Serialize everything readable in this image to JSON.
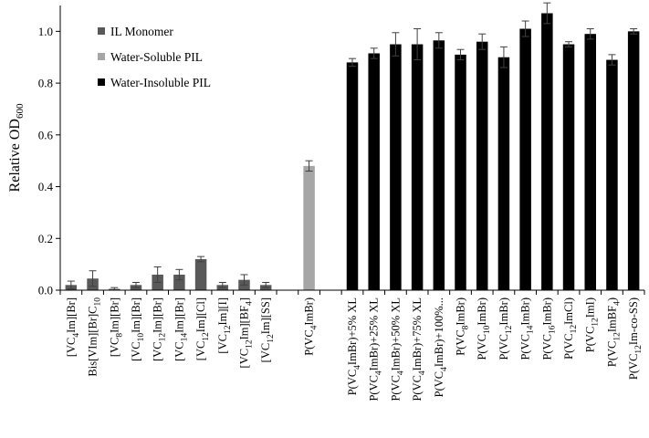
{
  "chart_data": {
    "type": "bar",
    "title": "",
    "xlabel": "",
    "ylabel": "Relative OD600",
    "ylabel_parts": [
      {
        "t": "Relative OD",
        "sub": false
      },
      {
        "t": "600",
        "sub": true
      }
    ],
    "ylim": [
      0,
      1.1
    ],
    "yticks": [
      0.0,
      0.2,
      0.4,
      0.6,
      0.8,
      1.0
    ],
    "ytick_labels": [
      "0.0",
      "0.2",
      "0.4",
      "0.6",
      "0.8",
      "1.0"
    ],
    "grid": false,
    "legend_position": "top-left",
    "series": [
      {
        "name": "IL Monomer",
        "color": "#595959"
      },
      {
        "name": "Water-Soluble PIL",
        "color": "#a6a6a6"
      },
      {
        "name": "Water-Insoluble PIL",
        "color": "#000000"
      }
    ],
    "points": [
      {
        "category": "[VC4Im][Br]",
        "label": [
          {
            "t": "[VC"
          },
          {
            "t": "4",
            "sub": true
          },
          {
            "t": "Im][Br]"
          }
        ],
        "series": 0,
        "value": 0.02,
        "error": 0.015
      },
      {
        "category": "Bis[VIm][Br]C10",
        "label": [
          {
            "t": "Bis[VIm][Br]C"
          },
          {
            "t": "10",
            "sub": true
          }
        ],
        "series": 0,
        "value": 0.045,
        "error": 0.03
      },
      {
        "category": "[VC8Im][Br]",
        "label": [
          {
            "t": "[VC"
          },
          {
            "t": "8",
            "sub": true
          },
          {
            "t": "Im][Br]"
          }
        ],
        "series": 0,
        "value": 0.005,
        "error": 0.005
      },
      {
        "category": "[VC10Im][Br]",
        "label": [
          {
            "t": "[VC"
          },
          {
            "t": "10",
            "sub": true
          },
          {
            "t": "Im][Br]"
          }
        ],
        "series": 0,
        "value": 0.02,
        "error": 0.01
      },
      {
        "category": "[VC12Im][Br]",
        "label": [
          {
            "t": "[VC"
          },
          {
            "t": "12",
            "sub": true
          },
          {
            "t": "Im][Br]"
          }
        ],
        "series": 0,
        "value": 0.06,
        "error": 0.03
      },
      {
        "category": "[VC14Im][Br]",
        "label": [
          {
            "t": "[VC"
          },
          {
            "t": "14",
            "sub": true
          },
          {
            "t": "Im][Br]"
          }
        ],
        "series": 0,
        "value": 0.06,
        "error": 0.02
      },
      {
        "category": "[VC12Im][Cl]",
        "label": [
          {
            "t": "[VC"
          },
          {
            "t": "12",
            "sub": true
          },
          {
            "t": "Im][Cl]"
          }
        ],
        "series": 0,
        "value": 0.12,
        "error": 0.01
      },
      {
        "category": "[VC12Im][I]",
        "label": [
          {
            "t": "[VC"
          },
          {
            "t": "12",
            "sub": true
          },
          {
            "t": "Im][I]"
          }
        ],
        "series": 0,
        "value": 0.02,
        "error": 0.01
      },
      {
        "category": "[VC12Im][BF4]",
        "label": [
          {
            "t": "[VC"
          },
          {
            "t": "12",
            "sub": true
          },
          {
            "t": "Im][BF"
          },
          {
            "t": "4",
            "sub": true
          },
          {
            "t": "]"
          }
        ],
        "series": 0,
        "value": 0.04,
        "error": 0.02
      },
      {
        "category": "[VC12Im][SS]",
        "label": [
          {
            "t": "[VC"
          },
          {
            "t": "12",
            "sub": true
          },
          {
            "t": "Im][SS]"
          }
        ],
        "series": 0,
        "value": 0.02,
        "error": 0.01
      },
      {
        "category": "",
        "label": [],
        "series": -1,
        "value": null,
        "error": null
      },
      {
        "category": "P(VC4ImBr)",
        "label": [
          {
            "t": "P(VC"
          },
          {
            "t": "4",
            "sub": true
          },
          {
            "t": "ImBr)"
          }
        ],
        "series": 1,
        "value": 0.48,
        "error": 0.02
      },
      {
        "category": "",
        "label": [],
        "series": -1,
        "value": null,
        "error": null
      },
      {
        "category": "P(VC4ImBr)+5% XL",
        "label": [
          {
            "t": "P(VC"
          },
          {
            "t": "4",
            "sub": true
          },
          {
            "t": "ImBr)+5% XL"
          }
        ],
        "series": 2,
        "value": 0.88,
        "error": 0.015
      },
      {
        "category": "P(VC4ImBr)+25% XL",
        "label": [
          {
            "t": "P(VC"
          },
          {
            "t": "4",
            "sub": true
          },
          {
            "t": "ImBr)+25% XL"
          }
        ],
        "series": 2,
        "value": 0.915,
        "error": 0.02
      },
      {
        "category": "P(VC4ImBr)+50% XL",
        "label": [
          {
            "t": "P(VC"
          },
          {
            "t": "4",
            "sub": true
          },
          {
            "t": "ImBr)+50% XL"
          }
        ],
        "series": 2,
        "value": 0.95,
        "error": 0.045
      },
      {
        "category": "P(VC4ImBr)+75% XL",
        "label": [
          {
            "t": "P(VC"
          },
          {
            "t": "4",
            "sub": true
          },
          {
            "t": "ImBr)+75% XL"
          }
        ],
        "series": 2,
        "value": 0.95,
        "error": 0.06
      },
      {
        "category": "P(VC4ImBr)+100%...",
        "label": [
          {
            "t": "P(VC"
          },
          {
            "t": "4",
            "sub": true
          },
          {
            "t": "ImBr)+100%..."
          }
        ],
        "series": 2,
        "value": 0.965,
        "error": 0.03
      },
      {
        "category": "P(VC8ImBr)",
        "label": [
          {
            "t": "P(VC"
          },
          {
            "t": "8",
            "sub": true
          },
          {
            "t": "ImBr)"
          }
        ],
        "series": 2,
        "value": 0.91,
        "error": 0.02
      },
      {
        "category": "P(VC10ImBr)",
        "label": [
          {
            "t": "P(VC"
          },
          {
            "t": "10",
            "sub": true
          },
          {
            "t": "ImBr)"
          }
        ],
        "series": 2,
        "value": 0.96,
        "error": 0.03
      },
      {
        "category": "P(VC12ImBr)",
        "label": [
          {
            "t": "P(VC"
          },
          {
            "t": "12",
            "sub": true
          },
          {
            "t": "ImBr)"
          }
        ],
        "series": 2,
        "value": 0.9,
        "error": 0.04
      },
      {
        "category": "P(VC14ImBr)",
        "label": [
          {
            "t": "P(VC"
          },
          {
            "t": "14",
            "sub": true
          },
          {
            "t": "ImBr)"
          }
        ],
        "series": 2,
        "value": 1.01,
        "error": 0.03
      },
      {
        "category": "P(VC16ImBr)",
        "label": [
          {
            "t": "P(VC"
          },
          {
            "t": "16",
            "sub": true
          },
          {
            "t": "ImBr)"
          }
        ],
        "series": 2,
        "value": 1.07,
        "error": 0.04
      },
      {
        "category": "P(VC12ImCl)",
        "label": [
          {
            "t": "P(VC"
          },
          {
            "t": "12",
            "sub": true
          },
          {
            "t": "ImCl)"
          }
        ],
        "series": 2,
        "value": 0.95,
        "error": 0.01
      },
      {
        "category": "P(VC12ImI)",
        "label": [
          {
            "t": "P(VC"
          },
          {
            "t": "12",
            "sub": true
          },
          {
            "t": "ImI)"
          }
        ],
        "series": 2,
        "value": 0.99,
        "error": 0.02
      },
      {
        "category": "P(VC12ImBF4)",
        "label": [
          {
            "t": "P(VC"
          },
          {
            "t": "12",
            "sub": true
          },
          {
            "t": "ImBF"
          },
          {
            "t": "4",
            "sub": true
          },
          {
            "t": ")"
          }
        ],
        "series": 2,
        "value": 0.89,
        "error": 0.02
      },
      {
        "category": "P(VC12Im-co-SS)",
        "label": [
          {
            "t": "P(VC"
          },
          {
            "t": "12",
            "sub": true
          },
          {
            "t": "Im-co-SS)"
          }
        ],
        "series": 2,
        "value": 1.0,
        "error": 0.01
      }
    ]
  }
}
